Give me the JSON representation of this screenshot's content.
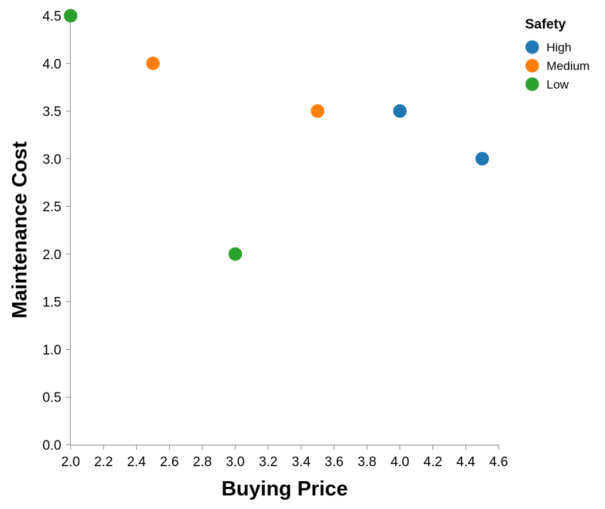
{
  "chart_data": {
    "type": "scatter",
    "title": "",
    "xlabel": "Buying Price",
    "ylabel": "Maintenance Cost",
    "xlim": [
      2.0,
      4.6
    ],
    "ylim": [
      0.0,
      4.5
    ],
    "x_ticks": [
      "2.0",
      "2.2",
      "2.4",
      "2.6",
      "2.8",
      "3.0",
      "3.2",
      "3.4",
      "3.6",
      "3.8",
      "4.0",
      "4.2",
      "4.4",
      "4.6"
    ],
    "y_ticks": [
      "0.0",
      "0.5",
      "1.0",
      "1.5",
      "2.0",
      "2.5",
      "3.0",
      "3.5",
      "4.0",
      "4.5"
    ],
    "grid": false,
    "legend": {
      "title": "Safety",
      "placement": "top-right"
    },
    "series": [
      {
        "name": "High",
        "color": "#1f77b4",
        "points": [
          {
            "x": 4.0,
            "y": 3.5
          },
          {
            "x": 4.5,
            "y": 3.0
          }
        ]
      },
      {
        "name": "Medium",
        "color": "#ff7f0e",
        "points": [
          {
            "x": 2.5,
            "y": 4.0
          },
          {
            "x": 3.5,
            "y": 3.5
          }
        ]
      },
      {
        "name": "Low",
        "color": "#2ca02c",
        "points": [
          {
            "x": 2.0,
            "y": 4.5
          },
          {
            "x": 3.0,
            "y": 2.0
          }
        ]
      }
    ]
  }
}
